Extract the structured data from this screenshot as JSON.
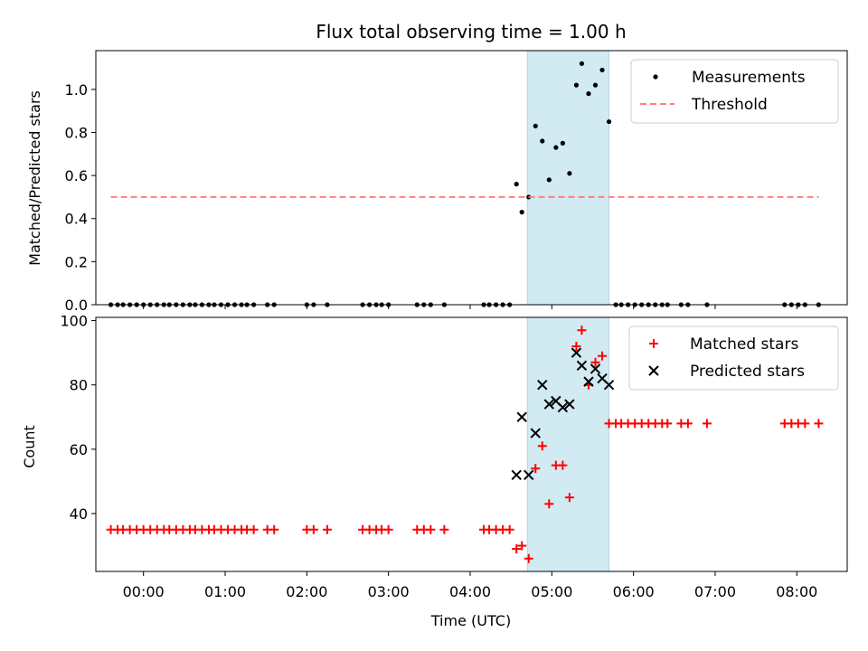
{
  "title": "Flux total observing time = 1.00 h",
  "colors": {
    "highlight": "#add8e6",
    "threshold": "#ff7f7f",
    "measurement": "#000000",
    "matched": "#ff0000",
    "predicted": "#000000"
  },
  "chart_data": [
    {
      "type": "scatter",
      "name": "top",
      "ylabel": "Matched/Predicted stars",
      "ylim": [
        0,
        1.18
      ],
      "yticks": [
        "0.0",
        "0.2",
        "0.4",
        "0.6",
        "0.8",
        "1.0"
      ],
      "xlim": [
        "23:25",
        "08:37"
      ],
      "shaded_region": [
        "04:42",
        "05:42"
      ],
      "legend": {
        "placement": "top-right",
        "entries": [
          "Measurements",
          "Threshold"
        ]
      },
      "series": [
        {
          "name": "Measurements",
          "x": [
            "23:36",
            "23:41",
            "23:45",
            "23:50",
            "23:55",
            "00:00",
            "00:05",
            "00:10",
            "00:15",
            "00:19",
            "00:24",
            "00:29",
            "00:34",
            "00:38",
            "00:43",
            "00:48",
            "00:52",
            "00:57",
            "01:02",
            "01:07",
            "01:12",
            "01:16",
            "01:21",
            "01:31",
            "01:36",
            "02:00",
            "02:05",
            "02:15",
            "02:41",
            "02:46",
            "02:51",
            "02:55",
            "03:00",
            "03:21",
            "03:26",
            "03:31",
            "03:41",
            "04:10",
            "04:14",
            "04:19",
            "04:24",
            "04:29",
            "04:34",
            "04:38",
            "04:43",
            "04:48",
            "04:53",
            "04:58",
            "05:03",
            "05:08",
            "05:13",
            "05:18",
            "05:22",
            "05:27",
            "05:32",
            "05:37",
            "05:42",
            "05:47",
            "05:51",
            "05:56",
            "06:01",
            "06:06",
            "06:11",
            "06:16",
            "06:21",
            "06:25",
            "06:35",
            "06:40",
            "06:54",
            "07:51",
            "07:56",
            "08:01",
            "08:06",
            "08:16"
          ],
          "y": [
            0,
            0,
            0,
            0,
            0,
            0,
            0,
            0,
            0,
            0,
            0,
            0,
            0,
            0,
            0,
            0,
            0,
            0,
            0,
            0,
            0,
            0,
            0,
            0,
            0,
            0,
            0,
            0,
            0,
            0,
            0,
            0,
            0,
            0,
            0,
            0,
            0,
            0,
            0,
            0,
            0,
            0,
            0.56,
            0.43,
            0.5,
            0.83,
            0.76,
            0.58,
            0.73,
            0.75,
            0.61,
            1.02,
            1.12,
            0.98,
            1.02,
            1.09,
            0.85,
            0,
            0,
            0,
            0,
            0,
            0,
            0,
            0,
            0,
            0,
            0,
            0,
            0,
            0,
            0,
            0,
            0
          ]
        },
        {
          "name": "Threshold",
          "x": [
            "23:36",
            "08:16"
          ],
          "y": [
            0.5,
            0.5
          ],
          "style": "dashed"
        }
      ]
    },
    {
      "type": "scatter",
      "name": "bottom",
      "ylabel": "Count",
      "xlabel": "Time (UTC)",
      "ylim": [
        22,
        101
      ],
      "yticks": [
        "40",
        "60",
        "80",
        "100"
      ],
      "xlim": [
        "23:25",
        "08:37"
      ],
      "xticks": [
        "00:00",
        "01:00",
        "02:00",
        "03:00",
        "04:00",
        "05:00",
        "06:00",
        "07:00",
        "08:00"
      ],
      "shaded_region": [
        "04:42",
        "05:42"
      ],
      "legend": {
        "placement": "top-right",
        "entries": [
          "Matched stars",
          "Predicted stars"
        ]
      },
      "series": [
        {
          "name": "Matched stars",
          "marker": "plus",
          "x": [
            "23:36",
            "23:41",
            "23:45",
            "23:50",
            "23:55",
            "00:00",
            "00:05",
            "00:10",
            "00:15",
            "00:19",
            "00:24",
            "00:29",
            "00:34",
            "00:38",
            "00:43",
            "00:48",
            "00:52",
            "00:57",
            "01:02",
            "01:07",
            "01:12",
            "01:16",
            "01:21",
            "01:31",
            "01:36",
            "02:00",
            "02:05",
            "02:15",
            "02:41",
            "02:46",
            "02:51",
            "02:55",
            "03:00",
            "03:21",
            "03:26",
            "03:31",
            "03:41",
            "04:10",
            "04:14",
            "04:19",
            "04:24",
            "04:29",
            "04:34",
            "04:38",
            "04:43",
            "04:48",
            "04:53",
            "04:58",
            "05:03",
            "05:08",
            "05:13",
            "05:18",
            "05:22",
            "05:27",
            "05:32",
            "05:37",
            "05:42",
            "05:47",
            "05:51",
            "05:56",
            "06:01",
            "06:06",
            "06:11",
            "06:16",
            "06:21",
            "06:25",
            "06:35",
            "06:40",
            "06:54",
            "07:51",
            "07:56",
            "08:01",
            "08:06",
            "08:16"
          ],
          "y": [
            35,
            35,
            35,
            35,
            35,
            35,
            35,
            35,
            35,
            35,
            35,
            35,
            35,
            35,
            35,
            35,
            35,
            35,
            35,
            35,
            35,
            35,
            35,
            35,
            35,
            35,
            35,
            35,
            35,
            35,
            35,
            35,
            35,
            35,
            35,
            35,
            35,
            35,
            35,
            35,
            35,
            35,
            29,
            30,
            26,
            54,
            61,
            43,
            55,
            55,
            45,
            92,
            97,
            80,
            87,
            89,
            68,
            68,
            68,
            68,
            68,
            68,
            68,
            68,
            68,
            68,
            68,
            68,
            68,
            68,
            68,
            68,
            68,
            68
          ]
        },
        {
          "name": "Predicted stars",
          "marker": "x",
          "x": [
            "04:34",
            "04:38",
            "04:43",
            "04:48",
            "04:53",
            "04:58",
            "05:03",
            "05:08",
            "05:13",
            "05:18",
            "05:22",
            "05:27",
            "05:32",
            "05:37",
            "05:42"
          ],
          "y": [
            52,
            70,
            52,
            65,
            80,
            74,
            75,
            73,
            74,
            90,
            86,
            81,
            85,
            82,
            80
          ]
        }
      ]
    }
  ]
}
